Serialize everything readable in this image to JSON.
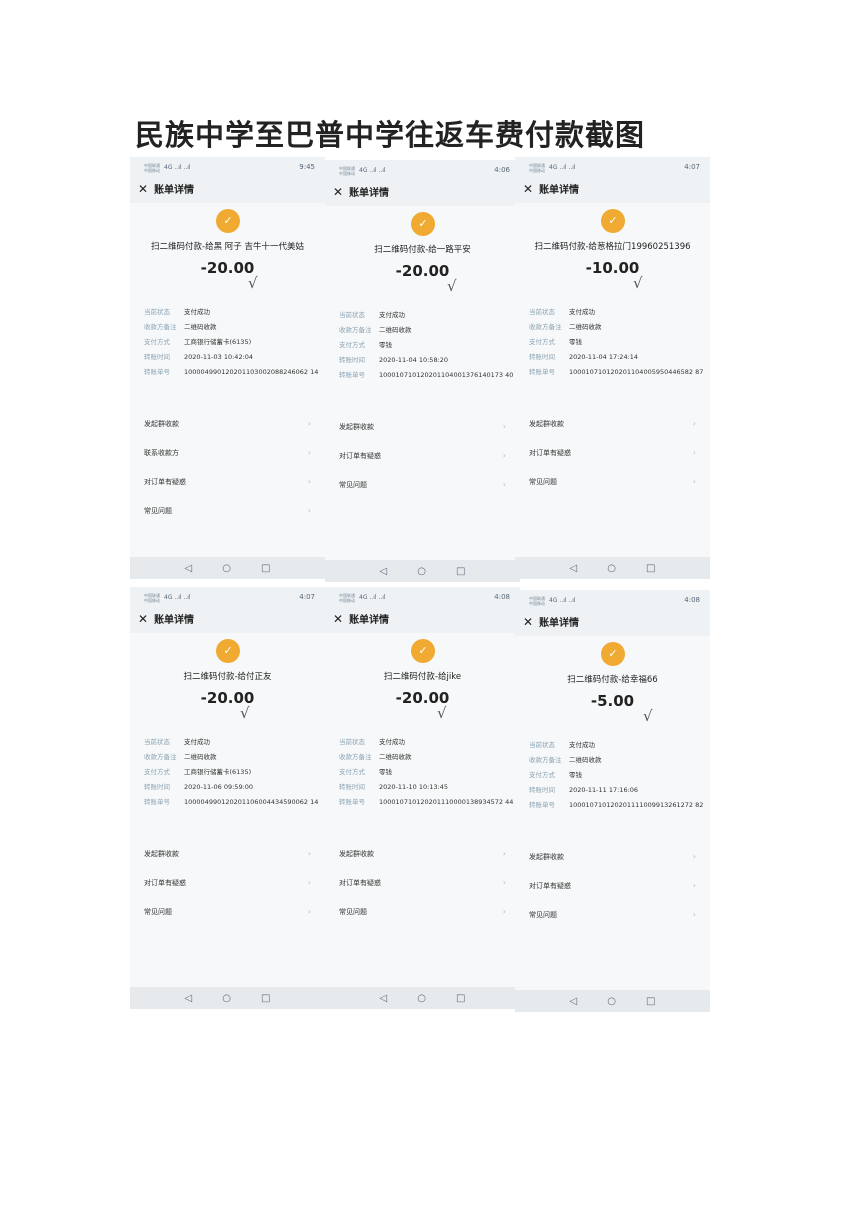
{
  "title": "民族中学至巴普中学往返车费付款截图",
  "common": {
    "header": "账单详情",
    "carrier": "中国联通\n中国移动",
    "signal": "4G ..ıl ..ıl",
    "labels": [
      "当前状态",
      "收款方备注",
      "支付方式",
      "转账时间",
      "转账单号"
    ],
    "icon": "money-bag-icon",
    "icon_color": "#f0a931",
    "nav": [
      "◁",
      "○",
      "□"
    ]
  },
  "panels": [
    {
      "time": "9:45",
      "title": "扫二维码付款-给黑 阿子 吉牛十一代美姑",
      "amount": "-20.00",
      "values": [
        "支付成功",
        "二维码收款",
        "工商银行储蓄卡(6135)",
        "2020-11-03 10:42:04",
        "100004990120201103002088246062 14"
      ],
      "menu": [
        "发起群收款",
        "联系收款方",
        "对订单有疑惑",
        "常见问题"
      ]
    },
    {
      "time": "4:06",
      "title": "扫二维码付款-给一路平安",
      "amount": "-20.00",
      "values": [
        "支付成功",
        "二维码收款",
        "零钱",
        "2020-11-04 10:58:20",
        "100010710120201104001376140173 40"
      ],
      "menu": [
        "发起群收款",
        "对订单有疑惑",
        "常见问题"
      ]
    },
    {
      "time": "4:07",
      "title": "扫二维码付款-给葱格拉门19960251396",
      "amount": "-10.00",
      "values": [
        "支付成功",
        "二维码收款",
        "零钱",
        "2020-11-04 17:24:14",
        "100010710120201104005950446582 87"
      ],
      "menu": [
        "发起群收款",
        "对订单有疑惑",
        "常见问题"
      ]
    },
    {
      "time": "4:07",
      "title": "扫二维码付款-给付正友",
      "amount": "-20.00",
      "values": [
        "支付成功",
        "二维码收款",
        "工商银行储蓄卡(6135)",
        "2020-11-06 09:59:00",
        "100004990120201106004434590062 14"
      ],
      "menu": [
        "发起群收款",
        "对订单有疑惑",
        "常见问题"
      ]
    },
    {
      "time": "4:08",
      "title": "扫二维码付款-给jike",
      "amount": "-20.00",
      "values": [
        "支付成功",
        "二维码收款",
        "零钱",
        "2020-11-10 10:13:45",
        "100010710120201110000138934572 44"
      ],
      "menu": [
        "发起群收款",
        "对订单有疑惑",
        "常见问题"
      ]
    },
    {
      "time": "4:08",
      "title": "扫二维码付款-给幸福66",
      "amount": "-5.00",
      "values": [
        "支付成功",
        "二维码收款",
        "零钱",
        "2020-11-11 17:16:06",
        "100010710120201111009913261272 82"
      ],
      "menu": [
        "发起群收款",
        "对订单有疑惑",
        "常见问题"
      ]
    }
  ]
}
